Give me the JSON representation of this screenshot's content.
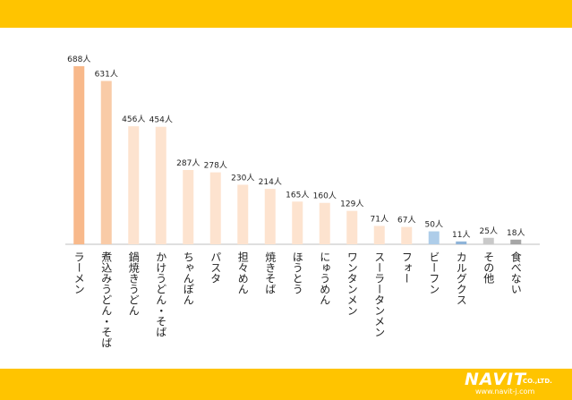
{
  "chart_data": {
    "type": "bar",
    "categories": [
      "ラーメン",
      "煮込みうどん・そば",
      "鍋焼きうどん",
      "かけうどん・そば",
      "ちゃんぽん",
      "パスタ",
      "担々めん",
      "焼きそば",
      "ほうとう",
      "にゅうめん",
      "ワンタンメン",
      "スーラータンメン",
      "フォー",
      "ビーフン",
      "カルグクス",
      "その他",
      "食べない"
    ],
    "values": [
      688,
      631,
      456,
      454,
      287,
      278,
      230,
      214,
      165,
      160,
      129,
      71,
      67,
      50,
      11,
      25,
      18
    ],
    "value_labels": [
      "688人",
      "631人",
      "456人",
      "454人",
      "287人",
      "278人",
      "230人",
      "214人",
      "165人",
      "160人",
      "129人",
      "71人",
      "67人",
      "50人",
      "11人",
      "25人",
      "18人"
    ],
    "colors": [
      "#f8b98b",
      "#f9cba7",
      "#fde3cf",
      "#fde3cf",
      "#fde3cf",
      "#fde3cf",
      "#fde3cf",
      "#fde3cf",
      "#fde3cf",
      "#fde3cf",
      "#fde3cf",
      "#fde3cf",
      "#fde3cf",
      "#aecde9",
      "#8fb4d8",
      "#c9c9c9",
      "#a6a6a6"
    ],
    "ylim": [
      0,
      700
    ],
    "title": "",
    "xlabel": "",
    "ylabel": ""
  },
  "branding": {
    "logo_text": "NAVIT",
    "company_suffix": "CO.,LTD.",
    "url": "www.navit-j.com",
    "frame_color": "#ffc400"
  }
}
